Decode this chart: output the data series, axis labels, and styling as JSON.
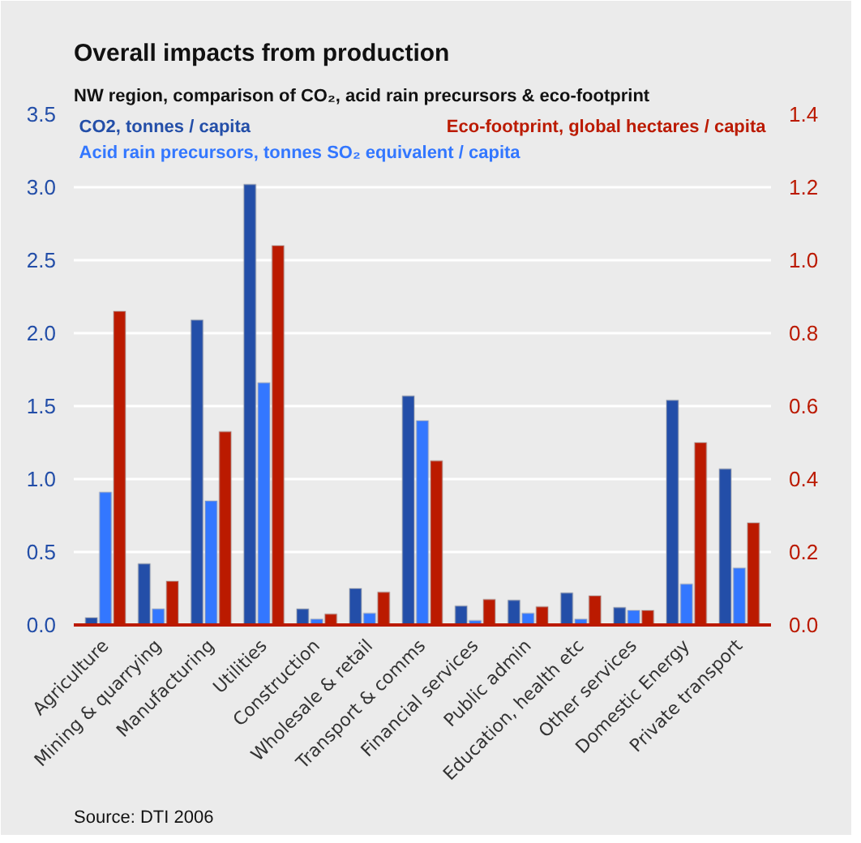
{
  "chart_data": {
    "type": "bar",
    "title": "Overall impacts from production",
    "subtitle": "NW region, comparison of CO₂, acid rain precursors & eco-footprint",
    "categories": [
      "Agriculture",
      "Mining & quarrying",
      "Manufacturing",
      "Utilities",
      "Construction",
      "Wholesale & retail",
      "Transport & comms",
      "Financial services",
      "Public admin",
      "Education, health etc",
      "Other services",
      "Domestic Energy",
      "Private transport"
    ],
    "series": [
      {
        "name": "CO2, tonnes / capita",
        "color": "#234ea8",
        "values": [
          0.05,
          0.42,
          2.09,
          3.02,
          0.11,
          0.25,
          1.57,
          0.13,
          0.17,
          0.22,
          0.12,
          1.54,
          1.07
        ]
      },
      {
        "name": "Acid rain precursors, tonnes SO₂ equivalent  / capita",
        "color": "#3377ff",
        "values": [
          0.91,
          0.11,
          0.85,
          1.66,
          0.04,
          0.08,
          1.4,
          0.03,
          0.08,
          0.04,
          0.1,
          0.28,
          0.39
        ]
      },
      {
        "name": "Eco-footprint, global hectares / capita",
        "color": "#bb1a00",
        "axis": "y2",
        "values": [
          0.86,
          0.12,
          0.53,
          1.04,
          0.03,
          0.09,
          0.45,
          0.07,
          0.05,
          0.08,
          0.04,
          0.5,
          0.28
        ]
      }
    ],
    "ylim": [
      0,
      3.5
    ],
    "yticks": [
      {
        "value": 0,
        "label": "0.0"
      },
      0.5,
      {
        "value": 1,
        "label": "1.0"
      },
      1.5,
      {
        "value": 2,
        "label": "2.0"
      },
      2.5,
      {
        "value": 3,
        "label": "3.0"
      },
      3.5
    ],
    "y2lim": [
      0,
      1.4
    ],
    "y2ticks": [
      {
        "value": 0,
        "label": "0.0"
      },
      0.2,
      0.4,
      0.6,
      0.8,
      {
        "value": 1,
        "label": "1.0"
      },
      1.2,
      1.4
    ],
    "grid": "y",
    "legend": "top",
    "annotations": [
      "Source: DTI 2006"
    ]
  }
}
